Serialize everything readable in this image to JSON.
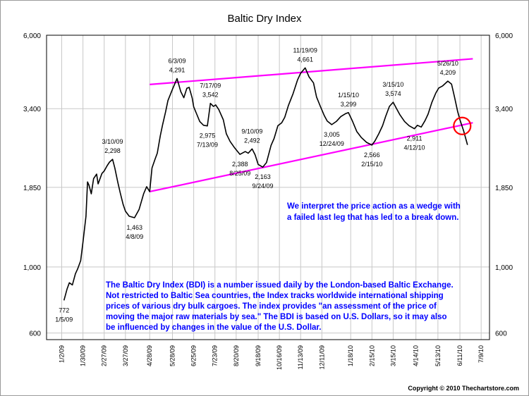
{
  "page": {
    "title": "Baltic Dry Index",
    "copyright": "Copyright © 2010 Thechartstore.com"
  },
  "chart_data": {
    "type": "line",
    "title": "Baltic Dry Index",
    "y_scale": "log",
    "ylim": [
      570,
      6000
    ],
    "xlim": [
      "2008-12-13",
      "2010-07-20"
    ],
    "grid": true,
    "yticks": [
      600,
      1000,
      1850,
      3400,
      6000
    ],
    "ytick_labels": [
      "600",
      "1,000",
      "1,850",
      "3,400",
      "6,000"
    ],
    "xticks": [
      "2009-01-02",
      "2009-01-30",
      "2009-02-27",
      "2009-03-27",
      "2009-04-28",
      "2009-05-28",
      "2009-06-25",
      "2009-07-23",
      "2009-08-20",
      "2009-09-18",
      "2009-10-16",
      "2009-11-13",
      "2009-12-11",
      "2010-01-18",
      "2010-02-15",
      "2010-03-15",
      "2010-04-14",
      "2010-05-13",
      "2010-06-11",
      "2010-07-09"
    ],
    "xtick_labels": [
      "1/2/09",
      "1/30/09",
      "2/27/09",
      "3/27/09",
      "4/28/09",
      "5/28/09",
      "6/25/09",
      "7/23/09",
      "8/20/09",
      "9/18/09",
      "10/16/09",
      "11/13/09",
      "12/11/09",
      "1/18/10",
      "2/15/10",
      "3/15/10",
      "4/14/10",
      "5/13/10",
      "6/11/10",
      "7/9/10"
    ],
    "series": [
      {
        "color": "#000000",
        "points": [
          [
            "2009-01-05",
            772
          ],
          [
            "2009-01-09",
            842
          ],
          [
            "2009-01-12",
            885
          ],
          [
            "2009-01-16",
            870
          ],
          [
            "2009-01-20",
            948
          ],
          [
            "2009-01-23",
            985
          ],
          [
            "2009-01-27",
            1050
          ],
          [
            "2009-01-30",
            1210
          ],
          [
            "2009-02-03",
            1480
          ],
          [
            "2009-02-05",
            1930
          ],
          [
            "2009-02-07",
            1880
          ],
          [
            "2009-02-10",
            1760
          ],
          [
            "2009-02-13",
            1980
          ],
          [
            "2009-02-17",
            2050
          ],
          [
            "2009-02-19",
            1900
          ],
          [
            "2009-02-24",
            2060
          ],
          [
            "2009-02-27",
            2100
          ],
          [
            "2009-03-03",
            2190
          ],
          [
            "2009-03-06",
            2250
          ],
          [
            "2009-03-10",
            2298
          ],
          [
            "2009-03-13",
            2150
          ],
          [
            "2009-03-17",
            1920
          ],
          [
            "2009-03-20",
            1780
          ],
          [
            "2009-03-24",
            1620
          ],
          [
            "2009-03-27",
            1540
          ],
          [
            "2009-04-01",
            1480
          ],
          [
            "2009-04-08",
            1463
          ],
          [
            "2009-04-14",
            1560
          ],
          [
            "2009-04-20",
            1760
          ],
          [
            "2009-04-24",
            1860
          ],
          [
            "2009-04-28",
            1790
          ],
          [
            "2009-05-01",
            2150
          ],
          [
            "2009-05-05",
            2300
          ],
          [
            "2009-05-08",
            2410
          ],
          [
            "2009-05-12",
            2760
          ],
          [
            "2009-05-15",
            3000
          ],
          [
            "2009-05-19",
            3320
          ],
          [
            "2009-05-22",
            3620
          ],
          [
            "2009-05-28",
            3950
          ],
          [
            "2009-06-03",
            4291
          ],
          [
            "2009-06-08",
            3880
          ],
          [
            "2009-06-12",
            3700
          ],
          [
            "2009-06-16",
            3980
          ],
          [
            "2009-06-19",
            4010
          ],
          [
            "2009-06-23",
            3690
          ],
          [
            "2009-06-25",
            3450
          ],
          [
            "2009-06-29",
            3260
          ],
          [
            "2009-07-03",
            3080
          ],
          [
            "2009-07-08",
            2990
          ],
          [
            "2009-07-13",
            2975
          ],
          [
            "2009-07-17",
            3542
          ],
          [
            "2009-07-21",
            3460
          ],
          [
            "2009-07-24",
            3500
          ],
          [
            "2009-07-28",
            3380
          ],
          [
            "2009-08-03",
            3120
          ],
          [
            "2009-08-07",
            2800
          ],
          [
            "2009-08-12",
            2640
          ],
          [
            "2009-08-18",
            2510
          ],
          [
            "2009-08-25",
            2388
          ],
          [
            "2009-09-01",
            2440
          ],
          [
            "2009-09-05",
            2410
          ],
          [
            "2009-09-10",
            2492
          ],
          [
            "2009-09-14",
            2380
          ],
          [
            "2009-09-18",
            2210
          ],
          [
            "2009-09-24",
            2163
          ],
          [
            "2009-09-29",
            2240
          ],
          [
            "2009-10-05",
            2560
          ],
          [
            "2009-10-09",
            2700
          ],
          [
            "2009-10-14",
            2980
          ],
          [
            "2009-10-19",
            3050
          ],
          [
            "2009-10-23",
            3180
          ],
          [
            "2009-10-28",
            3490
          ],
          [
            "2009-11-03",
            3820
          ],
          [
            "2009-11-09",
            4250
          ],
          [
            "2009-11-13",
            4470
          ],
          [
            "2009-11-19",
            4661
          ],
          [
            "2009-11-24",
            4350
          ],
          [
            "2009-11-30",
            4150
          ],
          [
            "2009-12-04",
            3720
          ],
          [
            "2009-12-09",
            3460
          ],
          [
            "2009-12-14",
            3230
          ],
          [
            "2009-12-18",
            3090
          ],
          [
            "2009-12-24",
            3005
          ],
          [
            "2009-12-30",
            3080
          ],
          [
            "2010-01-05",
            3200
          ],
          [
            "2010-01-11",
            3270
          ],
          [
            "2010-01-15",
            3299
          ],
          [
            "2010-01-20",
            3100
          ],
          [
            "2010-01-26",
            2850
          ],
          [
            "2010-02-01",
            2720
          ],
          [
            "2010-02-08",
            2620
          ],
          [
            "2010-02-15",
            2566
          ],
          [
            "2010-02-19",
            2650
          ],
          [
            "2010-02-24",
            2800
          ],
          [
            "2010-03-01",
            2980
          ],
          [
            "2010-03-05",
            3200
          ],
          [
            "2010-03-10",
            3460
          ],
          [
            "2010-03-15",
            3574
          ],
          [
            "2010-03-19",
            3420
          ],
          [
            "2010-03-24",
            3240
          ],
          [
            "2010-03-30",
            3080
          ],
          [
            "2010-04-05",
            2980
          ],
          [
            "2010-04-12",
            2911
          ],
          [
            "2010-04-16",
            2990
          ],
          [
            "2010-04-21",
            2950
          ],
          [
            "2010-04-26",
            3100
          ],
          [
            "2010-04-30",
            3260
          ],
          [
            "2010-05-05",
            3570
          ],
          [
            "2010-05-10",
            3830
          ],
          [
            "2010-05-14",
            3990
          ],
          [
            "2010-05-19",
            4050
          ],
          [
            "2010-05-26",
            4209
          ],
          [
            "2010-05-31",
            4110
          ],
          [
            "2010-06-04",
            3710
          ],
          [
            "2010-06-08",
            3330
          ],
          [
            "2010-06-11",
            3120
          ],
          [
            "2010-06-16",
            2860
          ],
          [
            "2010-06-21",
            2570
          ]
        ]
      }
    ],
    "trendlines": [
      {
        "color": "#ff00ff",
        "from": [
          "2009-04-28",
          4100
        ],
        "to": [
          "2010-06-28",
          5000
        ]
      },
      {
        "color": "#ff00ff",
        "from": [
          "2009-04-28",
          1790
        ],
        "to": [
          "2010-06-28",
          3050
        ]
      }
    ],
    "highlight": {
      "shape": "circle",
      "color": "#ff0000",
      "at": [
        "2010-06-14",
        2975
      ]
    },
    "annotations": [
      {
        "label": "772",
        "sub": "1/5/09",
        "at": [
          "2009-01-05",
          772
        ],
        "pos": "below"
      },
      {
        "label": "3/10/09",
        "sub": "2,298",
        "at": [
          "2009-03-10",
          2298
        ],
        "pos": "above"
      },
      {
        "label": "1,463",
        "sub": "4/8/09",
        "at": [
          "2009-04-08",
          1463
        ],
        "pos": "below"
      },
      {
        "label": "6/3/09",
        "sub": "4,291",
        "at": [
          "2009-06-03",
          4291
        ],
        "pos": "above"
      },
      {
        "label": "7/17/09",
        "sub": "3,542",
        "at": [
          "2009-07-17",
          3542
        ],
        "pos": "above"
      },
      {
        "label": "2,975",
        "sub": "7/13/09",
        "at": [
          "2009-07-13",
          2975
        ],
        "pos": "below"
      },
      {
        "label": "9/10/09",
        "sub": "2,492",
        "at": [
          "2009-09-10",
          2492
        ],
        "pos": "above"
      },
      {
        "label": "2,388",
        "sub": "8/25/09",
        "at": [
          "2009-08-25",
          2388
        ],
        "pos": "below"
      },
      {
        "label": "2,163",
        "sub": "9/24/09",
        "at": [
          "2009-09-24",
          2163
        ],
        "pos": "below"
      },
      {
        "label": "11/19/09",
        "sub": "4,661",
        "at": [
          "2009-11-19",
          4661
        ],
        "pos": "above"
      },
      {
        "label": "1/15/10",
        "sub": "3,299",
        "at": [
          "2010-01-15",
          3299
        ],
        "pos": "above"
      },
      {
        "label": "3,005",
        "sub": "12/24/09",
        "at": [
          "2009-12-24",
          3005
        ],
        "pos": "below"
      },
      {
        "label": "2,566",
        "sub": "2/15/10",
        "at": [
          "2010-02-15",
          2566
        ],
        "pos": "below"
      },
      {
        "label": "3/15/10",
        "sub": "3,574",
        "at": [
          "2010-03-15",
          3574
        ],
        "pos": "above"
      },
      {
        "label": "2,911",
        "sub": "4/12/10",
        "at": [
          "2010-04-12",
          2911
        ],
        "pos": "below"
      },
      {
        "label": "5/26/10",
        "sub": "4,209",
        "at": [
          "2010-05-26",
          4209
        ],
        "pos": "above"
      }
    ],
    "notes": [
      {
        "color": "#0000ff",
        "lines": [
          "We interpret the price action as a wedge with",
          "a failed last leg that has led to a break down."
        ]
      },
      {
        "color": "#0000ff",
        "lines": [
          "The Baltic Dry Index (BDI) is a number issued daily by the London-based Baltic Exchange.",
          "Not restricted to Baltic Sea countries, the Index tracks worldwide international shipping",
          "prices of various dry bulk cargoes.  The index provides \"an assessment of the price of",
          "moving the major raw materials by sea.\"  The BDI is based on U.S. Dollars, so it may also",
          "be influenced by changes in the value of the U.S. Dollar."
        ]
      }
    ]
  }
}
